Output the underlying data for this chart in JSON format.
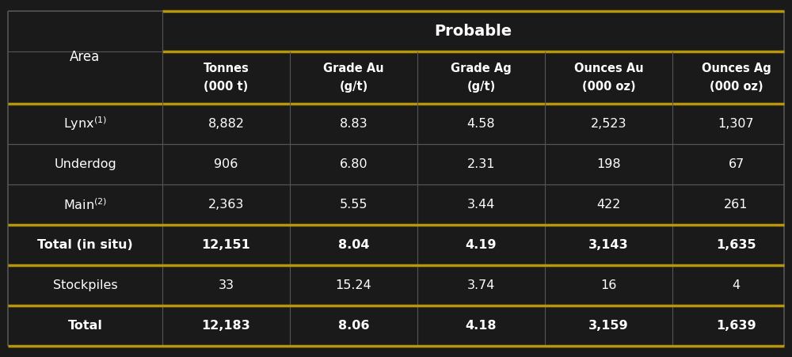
{
  "bg_color": "#1a1a1a",
  "gold_color": "#b8960c",
  "white": "#ffffff",
  "cell_line_color": "#555555",
  "probable_header": "Probable",
  "area_label": "Area",
  "col_headers": [
    [
      "Tonnes",
      "(000 t)"
    ],
    [
      "Grade Au",
      "(g/t)"
    ],
    [
      "Grade Ag",
      "(g/t)"
    ],
    [
      "Ounces Au",
      "(000 oz)"
    ],
    [
      "Ounces Ag",
      "(000 oz)"
    ]
  ],
  "rows": [
    {
      "label": "Lynx$^{(1)}$",
      "values": [
        "8,882",
        "8.83",
        "4.58",
        "2,523",
        "1,307"
      ],
      "bold": false
    },
    {
      "label": "Underdog",
      "values": [
        "906",
        "6.80",
        "2.31",
        "198",
        "67"
      ],
      "bold": false
    },
    {
      "label": "Main$^{(2)}$",
      "values": [
        "2,363",
        "5.55",
        "3.44",
        "422",
        "261"
      ],
      "bold": false
    },
    {
      "label": "Total (in situ)",
      "values": [
        "12,151",
        "8.04",
        "4.19",
        "3,143",
        "1,635"
      ],
      "bold": true
    },
    {
      "label": "Stockpiles",
      "values": [
        "33",
        "15.24",
        "3.74",
        "16",
        "4"
      ],
      "bold": false
    },
    {
      "label": "Total",
      "values": [
        "12,183",
        "8.06",
        "4.18",
        "3,159",
        "1,639"
      ],
      "bold": true
    }
  ],
  "figsize": [
    10.0,
    4.51
  ],
  "dpi": 100
}
